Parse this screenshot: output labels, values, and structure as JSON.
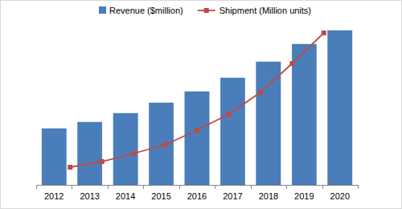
{
  "chart_data": {
    "type": "bar",
    "categories": [
      "2012",
      "2013",
      "2014",
      "2015",
      "2016",
      "2017",
      "2018",
      "2019",
      "2020"
    ],
    "series": [
      {
        "name": "Revenue ($million)",
        "type": "bar",
        "color": "#4a7ebb",
        "values": [
          70,
          78,
          89,
          102,
          116,
          133,
          153,
          175,
          192
        ]
      },
      {
        "name": "Shipment (Million units)",
        "type": "line",
        "color": "#be4b48",
        "marker": "square",
        "line_style": "solid",
        "axis": "y2",
        "values": [
          22,
          29,
          39,
          50,
          68,
          88,
          115,
          151,
          189
        ]
      }
    ],
    "ylim": [
      0,
      210
    ],
    "y2lim": [
      0,
      210
    ],
    "grid": false,
    "legend": "top",
    "tick_labels": "x"
  }
}
